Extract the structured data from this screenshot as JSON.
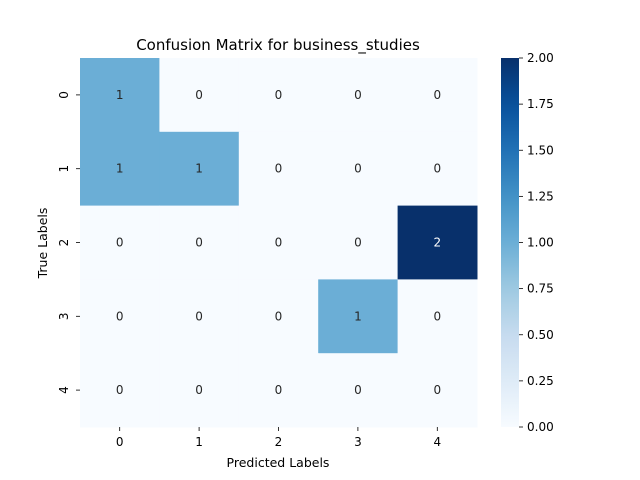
{
  "chart_data": {
    "type": "heatmap",
    "title": "Confusion Matrix for business_studies",
    "xlabel": "Predicted Labels",
    "ylabel": "True Labels",
    "x_categories": [
      "0",
      "1",
      "2",
      "3",
      "4"
    ],
    "y_categories": [
      "0",
      "1",
      "2",
      "3",
      "4"
    ],
    "values": [
      [
        1,
        0,
        0,
        0,
        0
      ],
      [
        1,
        1,
        0,
        0,
        0
      ],
      [
        0,
        0,
        0,
        0,
        2
      ],
      [
        0,
        0,
        0,
        1,
        0
      ],
      [
        0,
        0,
        0,
        0,
        0
      ]
    ],
    "colormap": "Blues",
    "vmin": 0,
    "vmax": 2,
    "colorbar_ticks": [
      "0.00",
      "0.25",
      "0.50",
      "0.75",
      "1.00",
      "1.25",
      "1.50",
      "1.75",
      "2.00"
    ],
    "colors": {
      "low": "#f7fbff",
      "mid": "#6aaed6",
      "high": "#08306b",
      "text_light": "#ffffff",
      "text_dark": "#262626"
    }
  }
}
